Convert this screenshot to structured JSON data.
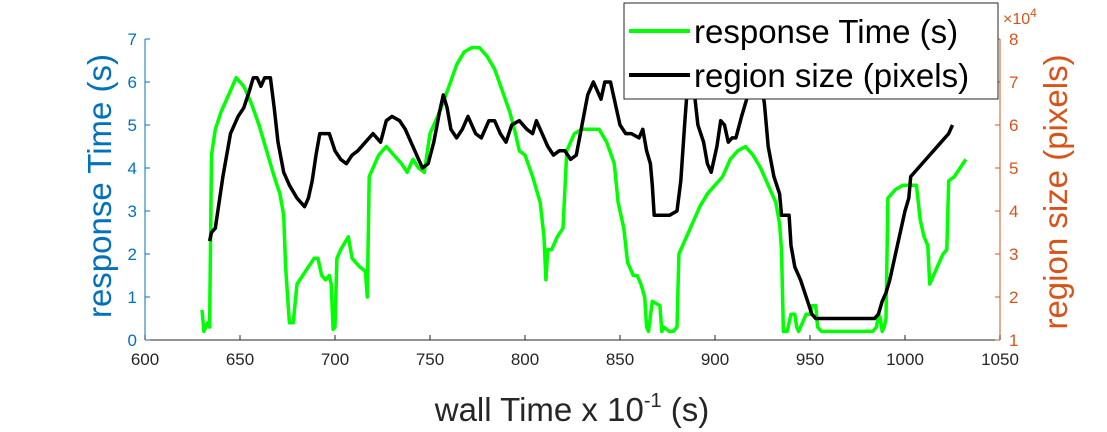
{
  "chart_data": {
    "type": "line",
    "xlabel_main": "wall Time x 10",
    "xlabel_exp": "-1",
    "xlabel_unit": " (s)",
    "ylabel_left": "response Time (s)",
    "ylabel_right": "region size (pixels)",
    "right_exponent_base": "×10",
    "right_exponent": "4",
    "xlim": [
      600,
      1050
    ],
    "ylim_left": [
      0,
      7
    ],
    "ylim_right": [
      1,
      8
    ],
    "x_ticks": [
      "600",
      "650",
      "700",
      "750",
      "800",
      "850",
      "900",
      "950",
      "1000",
      "1050"
    ],
    "y_left_ticks": [
      "0",
      "1",
      "2",
      "3",
      "4",
      "5",
      "6",
      "7"
    ],
    "y_right_ticks": [
      "1",
      "2",
      "3",
      "4",
      "5",
      "6",
      "7",
      "8"
    ],
    "legend_position": "top-right",
    "colors": {
      "response": "#00FF00",
      "region": "#000000",
      "left_axis": "#0072BD",
      "right_axis": "#D95319"
    },
    "series": [
      {
        "name": "response Time (s)",
        "axis": "left",
        "points": [
          [
            630,
            0.7
          ],
          [
            631,
            0.2
          ],
          [
            633,
            0.4
          ],
          [
            634,
            0.3
          ],
          [
            635,
            4.3
          ],
          [
            637,
            4.9
          ],
          [
            640,
            5.3
          ],
          [
            645,
            5.8
          ],
          [
            648,
            6.1
          ],
          [
            652,
            5.9
          ],
          [
            656,
            5.5
          ],
          [
            660,
            5.0
          ],
          [
            664,
            4.4
          ],
          [
            668,
            3.8
          ],
          [
            671,
            3.4
          ],
          [
            673,
            2.9
          ],
          [
            674,
            1.7
          ],
          [
            676,
            0.4
          ],
          [
            678,
            0.4
          ],
          [
            680,
            1.3
          ],
          [
            683,
            1.5
          ],
          [
            686,
            1.7
          ],
          [
            689,
            1.9
          ],
          [
            691,
            1.9
          ],
          [
            693,
            1.5
          ],
          [
            695,
            1.4
          ],
          [
            697,
            1.5
          ],
          [
            698,
            1.3
          ],
          [
            699,
            0.25
          ],
          [
            700,
            0.3
          ],
          [
            701,
            1.9
          ],
          [
            703,
            2.1
          ],
          [
            707,
            2.4
          ],
          [
            709,
            1.9
          ],
          [
            713,
            1.7
          ],
          [
            716,
            1.6
          ],
          [
            717,
            1.0
          ],
          [
            718,
            3.8
          ],
          [
            720,
            4.0
          ],
          [
            723,
            4.3
          ],
          [
            727,
            4.5
          ],
          [
            731,
            4.3
          ],
          [
            735,
            4.1
          ],
          [
            738,
            3.9
          ],
          [
            741,
            4.2
          ],
          [
            744,
            4.0
          ],
          [
            747,
            3.9
          ],
          [
            750,
            4.8
          ],
          [
            755,
            5.3
          ],
          [
            760,
            5.9
          ],
          [
            764,
            6.4
          ],
          [
            768,
            6.7
          ],
          [
            772,
            6.8
          ],
          [
            776,
            6.8
          ],
          [
            780,
            6.6
          ],
          [
            784,
            6.3
          ],
          [
            788,
            5.8
          ],
          [
            792,
            5.3
          ],
          [
            795,
            4.8
          ],
          [
            797,
            4.4
          ],
          [
            800,
            4.3
          ],
          [
            804,
            3.8
          ],
          [
            808,
            3.2
          ],
          [
            810,
            2.4
          ],
          [
            811,
            1.4
          ],
          [
            812,
            2.1
          ],
          [
            814,
            2.1
          ],
          [
            817,
            2.4
          ],
          [
            820,
            2.6
          ],
          [
            822,
            4.4
          ],
          [
            826,
            4.8
          ],
          [
            830,
            4.9
          ],
          [
            836,
            4.9
          ],
          [
            839,
            4.9
          ],
          [
            843,
            4.6
          ],
          [
            847,
            4.1
          ],
          [
            849,
            3.2
          ],
          [
            852,
            2.6
          ],
          [
            854,
            1.8
          ],
          [
            857,
            1.5
          ],
          [
            859,
            1.5
          ],
          [
            861,
            1.3
          ],
          [
            863,
            1.0
          ],
          [
            864,
            0.3
          ],
          [
            865,
            0.2
          ],
          [
            867,
            0.9
          ],
          [
            871,
            0.8
          ],
          [
            872,
            0.2
          ],
          [
            873,
            0.3
          ],
          [
            876,
            0.2
          ],
          [
            878,
            0.2
          ],
          [
            880,
            0.3
          ],
          [
            881,
            2.0
          ],
          [
            884,
            2.3
          ],
          [
            888,
            2.7
          ],
          [
            892,
            3.1
          ],
          [
            896,
            3.4
          ],
          [
            900,
            3.6
          ],
          [
            904,
            3.8
          ],
          [
            908,
            4.2
          ],
          [
            912,
            4.4
          ],
          [
            916,
            4.5
          ],
          [
            920,
            4.3
          ],
          [
            924,
            4.0
          ],
          [
            928,
            3.6
          ],
          [
            932,
            3.2
          ],
          [
            934,
            2.7
          ],
          [
            935,
            2.1
          ],
          [
            936,
            0.2
          ],
          [
            938,
            0.2
          ],
          [
            940,
            0.6
          ],
          [
            942,
            0.6
          ],
          [
            943,
            0.3
          ],
          [
            944,
            0.2
          ],
          [
            946,
            0.4
          ],
          [
            948,
            0.6
          ],
          [
            950,
            0.6
          ],
          [
            951,
            0.8
          ],
          [
            953,
            0.8
          ],
          [
            954,
            0.3
          ],
          [
            956,
            0.2
          ],
          [
            960,
            0.2
          ],
          [
            965,
            0.2
          ],
          [
            970,
            0.2
          ],
          [
            975,
            0.2
          ],
          [
            980,
            0.2
          ],
          [
            983,
            0.2
          ],
          [
            985,
            0.3
          ],
          [
            986,
            0.6
          ],
          [
            987,
            0.5
          ],
          [
            988,
            0.2
          ],
          [
            989,
            0.3
          ],
          [
            990,
            0.5
          ],
          [
            991,
            3.3
          ],
          [
            995,
            3.5
          ],
          [
            999,
            3.6
          ],
          [
            1003,
            3.6
          ],
          [
            1006,
            3.6
          ],
          [
            1008,
            2.8
          ],
          [
            1010,
            2.4
          ],
          [
            1012,
            2.2
          ],
          [
            1013,
            1.3
          ],
          [
            1014,
            1.4
          ],
          [
            1016,
            1.6
          ],
          [
            1018,
            1.8
          ],
          [
            1020,
            2.0
          ],
          [
            1022,
            2.1
          ],
          [
            1023,
            3.7
          ],
          [
            1026,
            3.8
          ],
          [
            1029,
            4.0
          ],
          [
            1032,
            4.2
          ]
        ]
      },
      {
        "name": "region size (pixels)",
        "axis": "right",
        "points": [
          [
            634,
            3.3
          ],
          [
            635,
            3.5
          ],
          [
            637,
            3.6
          ],
          [
            641,
            4.8
          ],
          [
            645,
            5.8
          ],
          [
            649,
            6.2
          ],
          [
            652,
            6.4
          ],
          [
            655,
            6.8
          ],
          [
            657,
            7.1
          ],
          [
            659,
            7.1
          ],
          [
            661,
            6.9
          ],
          [
            663,
            7.1
          ],
          [
            666,
            7.1
          ],
          [
            668,
            6.4
          ],
          [
            670,
            5.6
          ],
          [
            673,
            4.9
          ],
          [
            676,
            4.6
          ],
          [
            680,
            4.3
          ],
          [
            684,
            4.1
          ],
          [
            686,
            4.3
          ],
          [
            688,
            4.7
          ],
          [
            690,
            5.3
          ],
          [
            692,
            5.8
          ],
          [
            694,
            5.8
          ],
          [
            697,
            5.8
          ],
          [
            700,
            5.4
          ],
          [
            703,
            5.2
          ],
          [
            706,
            5.1
          ],
          [
            709,
            5.3
          ],
          [
            712,
            5.4
          ],
          [
            716,
            5.6
          ],
          [
            720,
            5.8
          ],
          [
            724,
            5.6
          ],
          [
            727,
            6.1
          ],
          [
            730,
            6.2
          ],
          [
            734,
            6.1
          ],
          [
            737,
            5.9
          ],
          [
            740,
            5.6
          ],
          [
            743,
            5.3
          ],
          [
            746,
            5.0
          ],
          [
            749,
            5.1
          ],
          [
            752,
            5.6
          ],
          [
            755,
            6.3
          ],
          [
            757,
            6.7
          ],
          [
            759,
            6.4
          ],
          [
            761,
            5.9
          ],
          [
            764,
            5.7
          ],
          [
            767,
            5.9
          ],
          [
            770,
            6.2
          ],
          [
            774,
            5.8
          ],
          [
            777,
            5.7
          ],
          [
            781,
            6.1
          ],
          [
            784,
            6.1
          ],
          [
            787,
            5.8
          ],
          [
            790,
            5.6
          ],
          [
            793,
            6.0
          ],
          [
            797,
            6.1
          ],
          [
            801,
            5.9
          ],
          [
            804,
            5.8
          ],
          [
            806,
            6.1
          ],
          [
            809,
            5.8
          ],
          [
            812,
            5.5
          ],
          [
            815,
            5.3
          ],
          [
            818,
            5.4
          ],
          [
            821,
            5.4
          ],
          [
            824,
            5.2
          ],
          [
            827,
            5.3
          ],
          [
            830,
            6.0
          ],
          [
            833,
            6.7
          ],
          [
            836,
            7.0
          ],
          [
            838,
            6.8
          ],
          [
            840,
            6.6
          ],
          [
            842,
            7.0
          ],
          [
            845,
            7.0
          ],
          [
            847,
            6.6
          ],
          [
            850,
            6.0
          ],
          [
            853,
            5.8
          ],
          [
            856,
            5.8
          ],
          [
            860,
            5.7
          ],
          [
            862,
            5.9
          ],
          [
            864,
            5.4
          ],
          [
            866,
            5.1
          ],
          [
            867,
            4.6
          ],
          [
            868,
            3.9
          ],
          [
            872,
            3.9
          ],
          [
            876,
            3.9
          ],
          [
            880,
            4.0
          ],
          [
            882,
            4.7
          ],
          [
            884,
            6.0
          ],
          [
            886,
            7.2
          ],
          [
            888,
            7.3
          ],
          [
            889,
            6.8
          ],
          [
            891,
            6.0
          ],
          [
            894,
            5.6
          ],
          [
            896,
            5.1
          ],
          [
            898,
            4.9
          ],
          [
            901,
            5.5
          ],
          [
            903,
            6.1
          ],
          [
            905,
            6.0
          ],
          [
            907,
            5.6
          ],
          [
            909,
            5.7
          ],
          [
            911,
            5.7
          ],
          [
            914,
            6.2
          ],
          [
            916,
            6.5
          ],
          [
            918,
            6.8
          ],
          [
            920,
            7.3
          ],
          [
            922,
            7.2
          ],
          [
            924,
            7.1
          ],
          [
            926,
            6.5
          ],
          [
            928,
            5.5
          ],
          [
            931,
            4.8
          ],
          [
            934,
            4.4
          ],
          [
            935,
            3.9
          ],
          [
            939,
            3.9
          ],
          [
            940,
            3.2
          ],
          [
            942,
            2.7
          ],
          [
            945,
            2.4
          ],
          [
            948,
            2.0
          ],
          [
            951,
            1.6
          ],
          [
            953,
            1.5
          ],
          [
            957,
            1.5
          ],
          [
            960,
            1.5
          ],
          [
            965,
            1.5
          ],
          [
            970,
            1.5
          ],
          [
            975,
            1.5
          ],
          [
            980,
            1.5
          ],
          [
            984,
            1.5
          ],
          [
            986,
            1.6
          ],
          [
            988,
            1.9
          ],
          [
            990,
            2.1
          ],
          [
            992,
            2.4
          ],
          [
            994,
            2.8
          ],
          [
            996,
            3.2
          ],
          [
            998,
            3.6
          ],
          [
            1000,
            4.0
          ],
          [
            1002,
            4.3
          ],
          [
            1003,
            4.8
          ],
          [
            1007,
            5.0
          ],
          [
            1011,
            5.2
          ],
          [
            1015,
            5.4
          ],
          [
            1019,
            5.6
          ],
          [
            1023,
            5.8
          ],
          [
            1025,
            6.0
          ]
        ]
      }
    ]
  }
}
